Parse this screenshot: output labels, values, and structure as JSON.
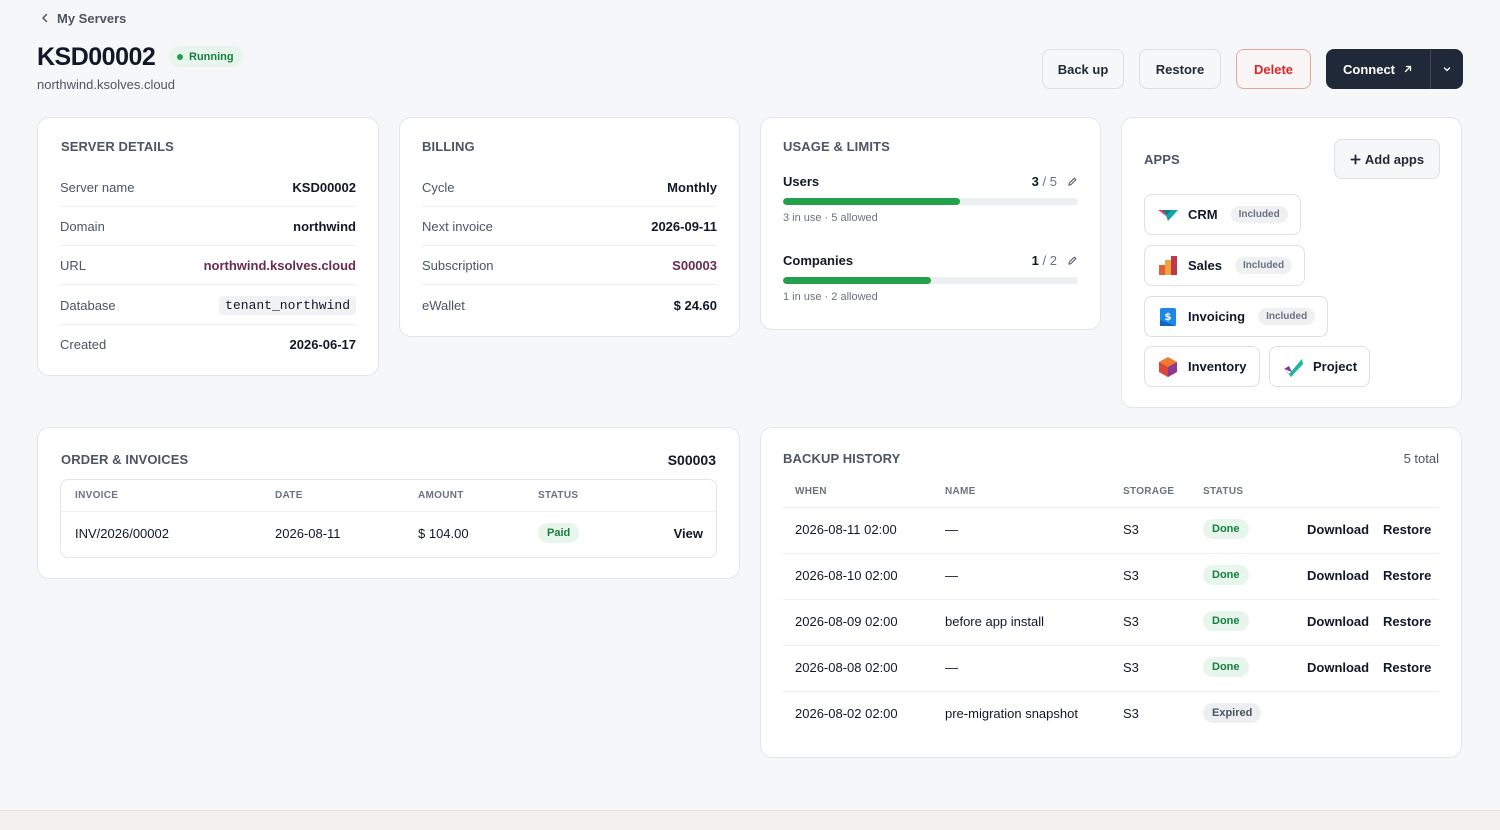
{
  "breadcrumb": {
    "back_label": "My Servers"
  },
  "header": {
    "title": "KSD00002",
    "status": "Running",
    "subtitle": "northwind.ksolves.cloud",
    "buttons": {
      "backup": "Back up",
      "restore": "Restore",
      "delete": "Delete",
      "connect": "Connect"
    }
  },
  "server_details": {
    "title": "SERVER DETAILS",
    "rows": [
      {
        "k": "Server name",
        "v": "KSD00002"
      },
      {
        "k": "Domain",
        "v": "northwind"
      },
      {
        "k": "URL",
        "v": "northwind.ksolves.cloud"
      },
      {
        "k": "Database",
        "v": "tenant_northwind"
      },
      {
        "k": "Created",
        "v": "2026-06-17"
      }
    ]
  },
  "billing": {
    "title": "BILLING",
    "rows": [
      {
        "k": "Cycle",
        "v": "Monthly"
      },
      {
        "k": "Next invoice",
        "v": "2026-09-11"
      },
      {
        "k": "Subscription",
        "v": "S00003"
      },
      {
        "k": "eWallet",
        "v": "$ 24.60"
      }
    ]
  },
  "usage": {
    "title": "USAGE & LIMITS",
    "items": [
      {
        "label": "Users",
        "used": "3",
        "limit": "/ 5",
        "note": "3 in use · 5 allowed",
        "fraction": 0.6
      },
      {
        "label": "Companies",
        "used": "1",
        "limit": "/ 2",
        "note": "1 in use · 2 allowed",
        "fraction": 0.5
      }
    ]
  },
  "apps": {
    "title": "APPS",
    "add_label": "Add apps",
    "items": [
      {
        "name": "CRM",
        "badge": "Included"
      },
      {
        "name": "Sales",
        "badge": "Included"
      },
      {
        "name": "Invoicing",
        "badge": "Included"
      },
      {
        "name": "Inventory"
      },
      {
        "name": "Project"
      }
    ]
  },
  "orders": {
    "title": "ORDER & INVOICES",
    "ref": "S00003",
    "columns": [
      "INVOICE",
      "DATE",
      "AMOUNT",
      "STATUS"
    ],
    "rows": [
      {
        "invoice": "INV/2026/00002",
        "date": "2026-08-11",
        "amount": "$ 104.00",
        "status": "Paid",
        "action": "View"
      }
    ]
  },
  "backups": {
    "title": "BACKUP HISTORY",
    "total": "5 total",
    "columns": [
      "WHEN",
      "NAME",
      "STORAGE",
      "STATUS"
    ],
    "download_label": "Download",
    "restore_label": "Restore",
    "rows": [
      {
        "when": "2026-08-11 02:00",
        "name": "—",
        "storage": "S3",
        "status": "Done"
      },
      {
        "when": "2026-08-10 02:00",
        "name": "—",
        "storage": "S3",
        "status": "Done"
      },
      {
        "when": "2026-08-09 02:00",
        "name": "before app install",
        "storage": "S3",
        "status": "Done"
      },
      {
        "when": "2026-08-08 02:00",
        "name": "—",
        "storage": "S3",
        "status": "Done"
      },
      {
        "when": "2026-08-02 02:00",
        "name": "pre-migration snapshot",
        "storage": "S3",
        "status": "Expired"
      }
    ]
  },
  "colors": {
    "accent": "#1f2937",
    "success": "#22a04b",
    "danger": "#dc2626",
    "link": "#6b2a4f"
  }
}
